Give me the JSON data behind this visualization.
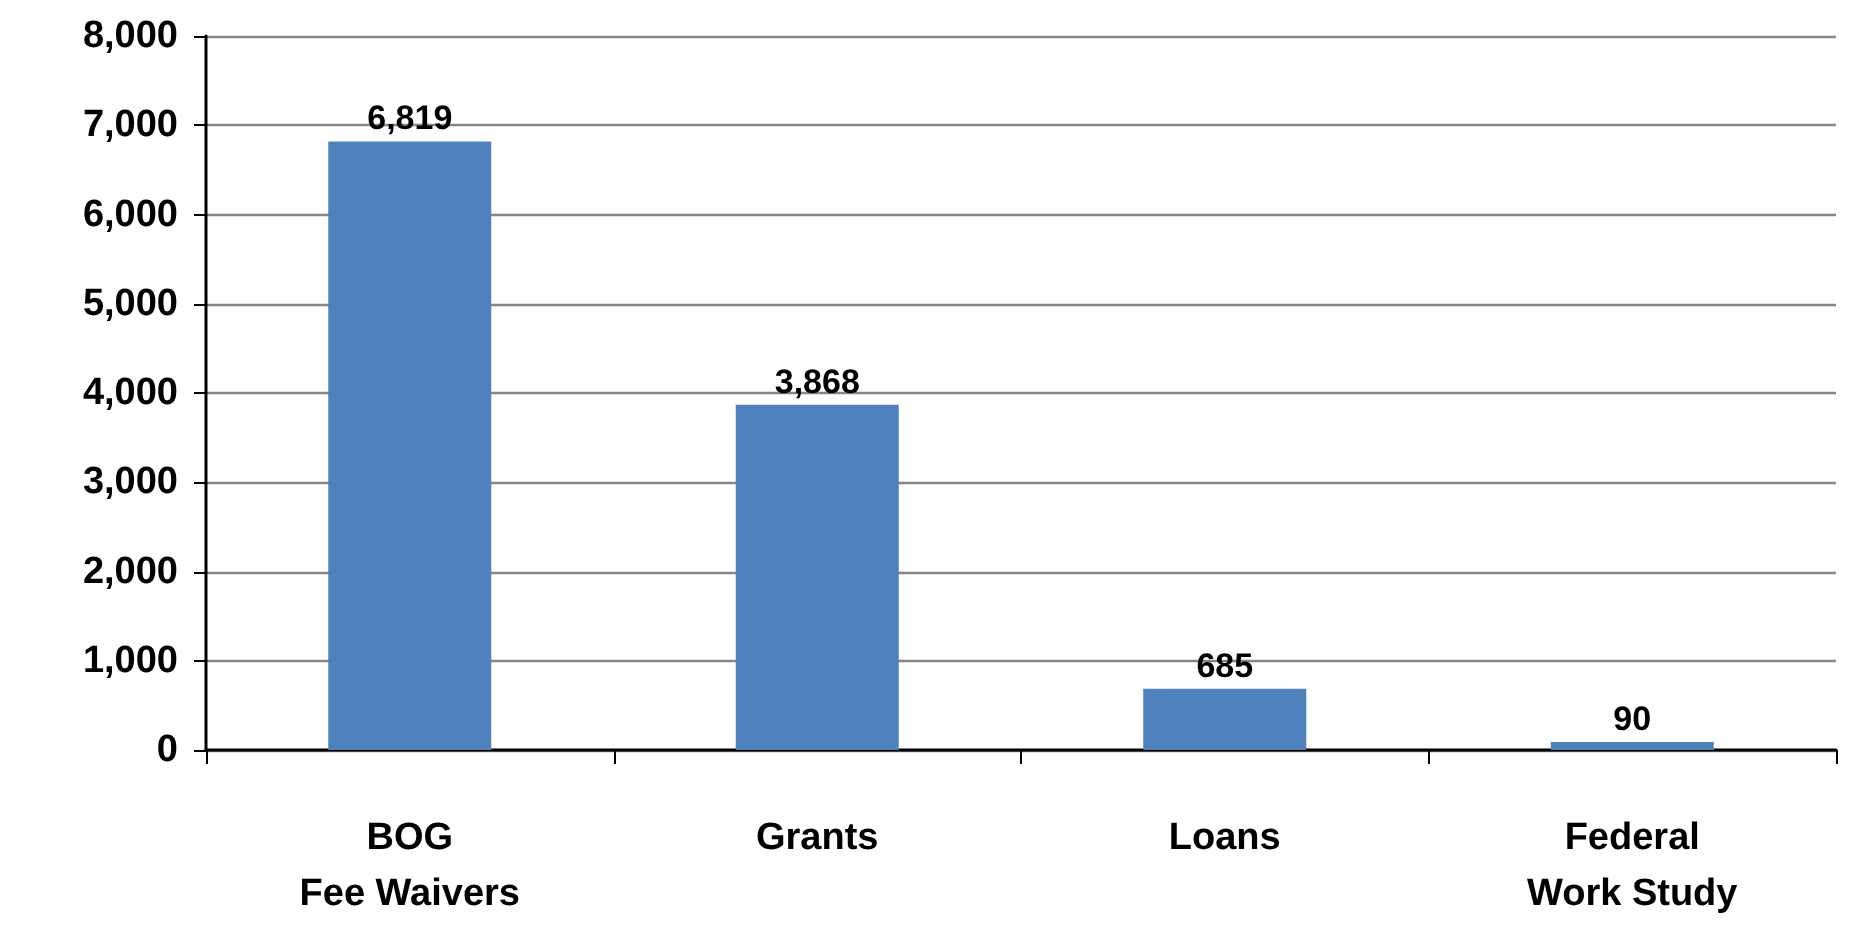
{
  "chart_data": {
    "type": "bar",
    "categories": [
      "BOG\nFee Waivers",
      "Grants",
      "Loans",
      "Federal\nWork Study"
    ],
    "values": [
      6819,
      3868,
      685,
      90
    ],
    "value_labels": [
      "6,819",
      "3,868",
      "685",
      "90"
    ],
    "color": "#4f81bd",
    "ylim": [
      0,
      8000
    ],
    "yticks": [
      0,
      {
        "value": 1000,
        "label": "1,000"
      },
      {
        "value": 2000,
        "label": "2,000"
      },
      {
        "value": 3000,
        "label": "3,000"
      },
      {
        "value": 4000,
        "label": "4,000"
      },
      {
        "value": 5000,
        "label": "5,000"
      },
      {
        "value": 6000,
        "label": "6,000"
      },
      {
        "value": 7000,
        "label": "7,000"
      },
      {
        "value": 8000,
        "label": "8,000"
      }
    ],
    "grid": "y"
  }
}
